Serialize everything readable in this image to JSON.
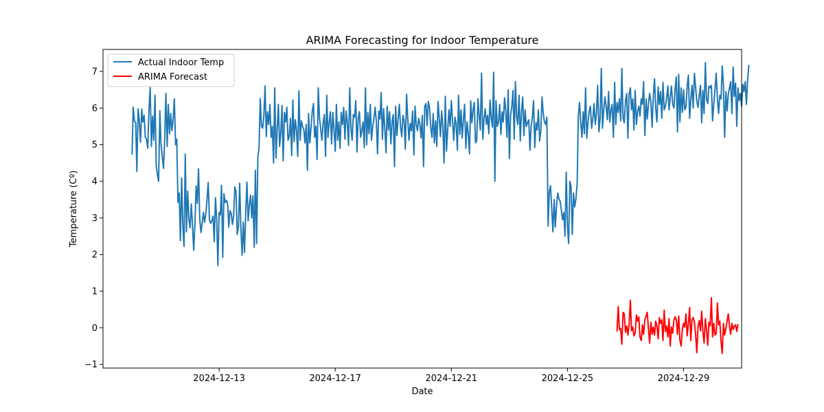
{
  "chart_data": {
    "type": "line",
    "title": "ARIMA Forecasting for Indoor Temperature",
    "xlabel": "Date",
    "ylabel": "Temperature (Cº)",
    "x_ticks": [
      "2024-12-13",
      "2024-12-17",
      "2024-12-21",
      "2024-12-25",
      "2024-12-29"
    ],
    "y_ticks": [
      "−1",
      "0",
      "1",
      "2",
      "3",
      "4",
      "5",
      "6",
      "7"
    ],
    "xlim": [
      "2024-12-09",
      "2024-12-31"
    ],
    "ylim": [
      -1.1,
      7.6
    ],
    "grid": false,
    "legend_position": "top-left",
    "series": [
      {
        "name": "Actual Indoor Temp",
        "color": "#1f77b4",
        "x_start": "2024-12-10",
        "step_hours": 1,
        "values": [
          4.73,
          6.02,
          5.65,
          5.6,
          4.27,
          5.98,
          5.66,
          5.07,
          5.97,
          5.62,
          5.8,
          5.2,
          5.15,
          4.9,
          5.95,
          6.56,
          4.95,
          5.78,
          5.12,
          6.35,
          4.42,
          4.18,
          4.0,
          5.93,
          5.02,
          4.68,
          4.35,
          5.12,
          6.4,
          4.95,
          6.1,
          5.3,
          5.85,
          5.38,
          5.7,
          6.25,
          5.0,
          5.15,
          3.42,
          3.68,
          2.38,
          4.09,
          2.75,
          2.22,
          4.74,
          2.62,
          3.73,
          2.95,
          2.73,
          3.38,
          2.82,
          2.12,
          2.84,
          3.87,
          3.4,
          4.34,
          2.97,
          2.6,
          2.85,
          3.15,
          2.88,
          3.1,
          3.5,
          3.97,
          2.95,
          2.85,
          2.92,
          3.05,
          2.35,
          3.55,
          2.95,
          1.7,
          3.15,
          3.08,
          3.89,
          1.92,
          3.66,
          3.42,
          3.48,
          3.4,
          2.75,
          3.2,
          3.12,
          2.82,
          3.05,
          3.85,
          3.72,
          2.55,
          2.78,
          3.95,
          2.73,
          1.98,
          2.88,
          2.06,
          3.1,
          3.98,
          2.92,
          3.35,
          3.62,
          3.0,
          3.6,
          2.2,
          4.3,
          2.3,
          4.66,
          4.9,
          6.26,
          5.5,
          5.45,
          5.8,
          6.6,
          5.22,
          5.9,
          5.55,
          6.1,
          5.2,
          5.5,
          4.5,
          6.55,
          4.64,
          5.38,
          6.1,
          4.95,
          5.3,
          6.07,
          4.56,
          5.88,
          5.62,
          6.02,
          5.12,
          5.22,
          5.72,
          4.7,
          6.22,
          5.08,
          5.68,
          5.4,
          4.68,
          6.47,
          5.12,
          5.65,
          5.5,
          5.42,
          5.05,
          5.55,
          4.3,
          5.85,
          5.05,
          5.48,
          5.9,
          6.12,
          5.2,
          5.5,
          4.6,
          6.55,
          5.72,
          5.45,
          5.12,
          5.6,
          5.82,
          4.68,
          6.35,
          5.2,
          5.6,
          5.9,
          5.02,
          5.88,
          5.42,
          4.82,
          6.1,
          5.12,
          5.62,
          4.9,
          5.88,
          5.55,
          6.02,
          5.15,
          5.92,
          5.6,
          4.98,
          6.55,
          5.45,
          5.12,
          5.82,
          5.75,
          6.2,
          4.8,
          5.72,
          5.9,
          5.2,
          5.38,
          5.62,
          4.92,
          6.55,
          5.0,
          5.88,
          5.3,
          6.1,
          5.12,
          5.5,
          5.72,
          6.02,
          5.62,
          4.75,
          5.92,
          5.7,
          6.42,
          5.15,
          5.98,
          5.45,
          4.78,
          6.05,
          5.4,
          5.9,
          5.02,
          5.65,
          5.82,
          4.4,
          6.05,
          5.25,
          5.7,
          6.1,
          5.5,
          5.22,
          5.8,
          5.65,
          4.88,
          6.38,
          5.68,
          5.12,
          5.58,
          5.38,
          5.92,
          4.72,
          6.05,
          5.55,
          5.38,
          5.72,
          5.55,
          5.18,
          5.8,
          4.4,
          6.05,
          6.12,
          5.52,
          6.18,
          6.0,
          5.48,
          5.2,
          5.85,
          5.05,
          5.65,
          4.95,
          6.18,
          5.72,
          5.22,
          5.92,
          5.5,
          4.5,
          6.32,
          4.82,
          5.4,
          5.95,
          5.5,
          6.2,
          5.65,
          5.12,
          5.75,
          5.58,
          4.85,
          6.35,
          5.28,
          5.95,
          5.18,
          5.7,
          6.1,
          4.9,
          5.62,
          5.3,
          4.75,
          6.2,
          5.6,
          5.95,
          6.15,
          5.05,
          5.12,
          6.25,
          5.78,
          5.4,
          6.95,
          5.15,
          5.68,
          5.98,
          5.55,
          5.8,
          5.3,
          6.22,
          5.72,
          5.48,
          6.98,
          4.0,
          6.2,
          5.5,
          5.62,
          6.1,
          5.28,
          5.9,
          5.62,
          6.28,
          5.95,
          5.2,
          6.5,
          4.62,
          5.8,
          6.02,
          6.48,
          5.15,
          6.72,
          5.75,
          5.55,
          6.35,
          5.1,
          5.88,
          6.3,
          5.25,
          5.95,
          5.5,
          5.6,
          5.68,
          4.85,
          5.5,
          5.75,
          6.2,
          4.92,
          5.6,
          5.4,
          5.95,
          5.1,
          5.38,
          6.3,
          5.85,
          5.62,
          5.55,
          5.75,
          2.78,
          3.7,
          3.88,
          3.25,
          2.62,
          3.5,
          2.75,
          3.35,
          3.68,
          3.52,
          3.45,
          3.2,
          2.95,
          3.15,
          2.5,
          4.25,
          2.75,
          2.3,
          4.0,
          3.85,
          2.55,
          3.68,
          3.3,
          3.52,
          3.92,
          5.78,
          6.15,
          5.6,
          5.2,
          5.9,
          5.3,
          6.55,
          5.18,
          5.62,
          5.92,
          6.05,
          5.45,
          5.72,
          6.12,
          5.55,
          5.85,
          6.62,
          5.35,
          5.7,
          7.08,
          5.45,
          5.95,
          6.3,
          6.05,
          5.68,
          6.45,
          5.62,
          5.95,
          6.1,
          5.2,
          6.7,
          5.55,
          6.15,
          5.88,
          6.25,
          5.65,
          7.08,
          5.72,
          5.6,
          6.2,
          6.4,
          5.18,
          6.38,
          6.55,
          5.95,
          6.25,
          5.4,
          6.48,
          5.55,
          5.9,
          6.05,
          5.78,
          6.25,
          6.1,
          6.72,
          5.25,
          6.25,
          5.7,
          6.12,
          6.4,
          6.15,
          5.48,
          6.32,
          6.8,
          6.0,
          5.62,
          6.58,
          6.1,
          6.45,
          5.72,
          6.7,
          5.95,
          6.05,
          6.25,
          6.6,
          5.95,
          6.3,
          6.6,
          6.1,
          6.0,
          6.5,
          6.85,
          5.35,
          6.92,
          5.62,
          6.55,
          5.88,
          6.5,
          5.95,
          6.02,
          6.58,
          6.9,
          5.72,
          6.22,
          6.62,
          6.0,
          6.95,
          6.55,
          6.18,
          6.02,
          6.35,
          6.62,
          5.6,
          6.48,
          5.85,
          7.24,
          6.25,
          6.12,
          6.6,
          6.55,
          6.62,
          5.65,
          6.12,
          6.5,
          6.95,
          6.25,
          5.85,
          6.35,
          6.25,
          7.15,
          6.62,
          5.2,
          6.45,
          5.92,
          6.38,
          6.55,
          6.72,
          5.85,
          7.12,
          6.32,
          6.68,
          5.5,
          6.55,
          6.2,
          6.4,
          6.05,
          6.65,
          6.45,
          6.72,
          6.1,
          6.78,
          7.18
        ]
      },
      {
        "name": "ARIMA Forecast",
        "color": "#ff0000",
        "x_start": "2024-12-26T17:00",
        "step_hours": 1,
        "values": [
          -0.1,
          0.58,
          -0.05,
          -0.02,
          -0.45,
          0.42,
          0.38,
          -0.12,
          0.05,
          -0.2,
          0.1,
          0.75,
          -0.08,
          0.02,
          -0.22,
          -0.15,
          0.35,
          0.18,
          0.3,
          -0.25,
          -0.35,
          0.08,
          -0.18,
          0.22,
          0.32,
          0.42,
          -0.05,
          -0.42,
          0.15,
          -0.18,
          0.02,
          -0.2,
          0.18,
          0.05,
          -0.3,
          0.28,
          0.12,
          0.22,
          -0.35,
          0.48,
          -0.1,
          0.05,
          -0.25,
          0.25,
          -0.5,
          0.02,
          -0.15,
          0.2,
          0.3,
          0.22,
          -0.18,
          0.32,
          -0.35,
          -0.5,
          -0.05,
          0.12,
          0.02,
          0.38,
          -0.22,
          0.1,
          0.55,
          -0.35,
          0.22,
          0.28,
          0.15,
          -0.2,
          -0.68,
          0.05,
          0.2,
          -0.08,
          0.45,
          -0.1,
          -0.42,
          0.25,
          -0.05,
          -0.48,
          0.15,
          0.05,
          0.82,
          -0.25,
          0.12,
          -0.2,
          -0.15,
          0.68,
          0.08,
          0.18,
          -0.38,
          -0.7,
          0.12,
          -0.2,
          -0.02,
          0.18,
          0.38,
          0.05,
          -0.18,
          0.12,
          -0.05,
          0.05,
          0.08,
          -0.1,
          0.1
        ]
      }
    ]
  }
}
